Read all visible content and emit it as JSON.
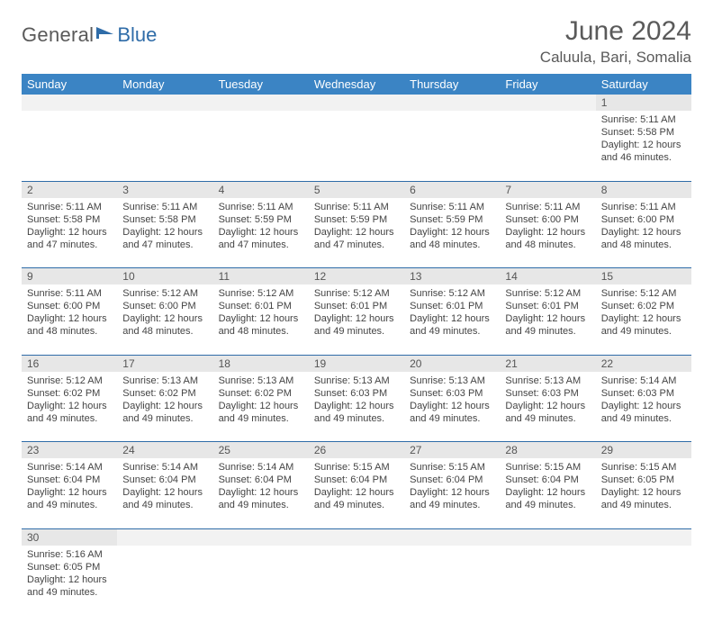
{
  "logo": {
    "part1": "General",
    "part2": "Blue",
    "icon_color": "#2f6ca8"
  },
  "title": "June 2024",
  "location": "Caluula, Bari, Somalia",
  "colors": {
    "header_bg": "#3b84c4",
    "header_fg": "#ffffff",
    "daynum_bg": "#e7e7e7",
    "row_divider": "#2f6ca8",
    "text": "#444444",
    "title_color": "#5a5a5a"
  },
  "weekdays": [
    "Sunday",
    "Monday",
    "Tuesday",
    "Wednesday",
    "Thursday",
    "Friday",
    "Saturday"
  ],
  "weeks": [
    {
      "nums": [
        "",
        "",
        "",
        "",
        "",
        "",
        "1"
      ],
      "cells": [
        null,
        null,
        null,
        null,
        null,
        null,
        {
          "sunrise": "Sunrise: 5:11 AM",
          "sunset": "Sunset: 5:58 PM",
          "day1": "Daylight: 12 hours",
          "day2": "and 46 minutes."
        }
      ]
    },
    {
      "nums": [
        "2",
        "3",
        "4",
        "5",
        "6",
        "7",
        "8"
      ],
      "cells": [
        {
          "sunrise": "Sunrise: 5:11 AM",
          "sunset": "Sunset: 5:58 PM",
          "day1": "Daylight: 12 hours",
          "day2": "and 47 minutes."
        },
        {
          "sunrise": "Sunrise: 5:11 AM",
          "sunset": "Sunset: 5:58 PM",
          "day1": "Daylight: 12 hours",
          "day2": "and 47 minutes."
        },
        {
          "sunrise": "Sunrise: 5:11 AM",
          "sunset": "Sunset: 5:59 PM",
          "day1": "Daylight: 12 hours",
          "day2": "and 47 minutes."
        },
        {
          "sunrise": "Sunrise: 5:11 AM",
          "sunset": "Sunset: 5:59 PM",
          "day1": "Daylight: 12 hours",
          "day2": "and 47 minutes."
        },
        {
          "sunrise": "Sunrise: 5:11 AM",
          "sunset": "Sunset: 5:59 PM",
          "day1": "Daylight: 12 hours",
          "day2": "and 48 minutes."
        },
        {
          "sunrise": "Sunrise: 5:11 AM",
          "sunset": "Sunset: 6:00 PM",
          "day1": "Daylight: 12 hours",
          "day2": "and 48 minutes."
        },
        {
          "sunrise": "Sunrise: 5:11 AM",
          "sunset": "Sunset: 6:00 PM",
          "day1": "Daylight: 12 hours",
          "day2": "and 48 minutes."
        }
      ]
    },
    {
      "nums": [
        "9",
        "10",
        "11",
        "12",
        "13",
        "14",
        "15"
      ],
      "cells": [
        {
          "sunrise": "Sunrise: 5:11 AM",
          "sunset": "Sunset: 6:00 PM",
          "day1": "Daylight: 12 hours",
          "day2": "and 48 minutes."
        },
        {
          "sunrise": "Sunrise: 5:12 AM",
          "sunset": "Sunset: 6:00 PM",
          "day1": "Daylight: 12 hours",
          "day2": "and 48 minutes."
        },
        {
          "sunrise": "Sunrise: 5:12 AM",
          "sunset": "Sunset: 6:01 PM",
          "day1": "Daylight: 12 hours",
          "day2": "and 48 minutes."
        },
        {
          "sunrise": "Sunrise: 5:12 AM",
          "sunset": "Sunset: 6:01 PM",
          "day1": "Daylight: 12 hours",
          "day2": "and 49 minutes."
        },
        {
          "sunrise": "Sunrise: 5:12 AM",
          "sunset": "Sunset: 6:01 PM",
          "day1": "Daylight: 12 hours",
          "day2": "and 49 minutes."
        },
        {
          "sunrise": "Sunrise: 5:12 AM",
          "sunset": "Sunset: 6:01 PM",
          "day1": "Daylight: 12 hours",
          "day2": "and 49 minutes."
        },
        {
          "sunrise": "Sunrise: 5:12 AM",
          "sunset": "Sunset: 6:02 PM",
          "day1": "Daylight: 12 hours",
          "day2": "and 49 minutes."
        }
      ]
    },
    {
      "nums": [
        "16",
        "17",
        "18",
        "19",
        "20",
        "21",
        "22"
      ],
      "cells": [
        {
          "sunrise": "Sunrise: 5:12 AM",
          "sunset": "Sunset: 6:02 PM",
          "day1": "Daylight: 12 hours",
          "day2": "and 49 minutes."
        },
        {
          "sunrise": "Sunrise: 5:13 AM",
          "sunset": "Sunset: 6:02 PM",
          "day1": "Daylight: 12 hours",
          "day2": "and 49 minutes."
        },
        {
          "sunrise": "Sunrise: 5:13 AM",
          "sunset": "Sunset: 6:02 PM",
          "day1": "Daylight: 12 hours",
          "day2": "and 49 minutes."
        },
        {
          "sunrise": "Sunrise: 5:13 AM",
          "sunset": "Sunset: 6:03 PM",
          "day1": "Daylight: 12 hours",
          "day2": "and 49 minutes."
        },
        {
          "sunrise": "Sunrise: 5:13 AM",
          "sunset": "Sunset: 6:03 PM",
          "day1": "Daylight: 12 hours",
          "day2": "and 49 minutes."
        },
        {
          "sunrise": "Sunrise: 5:13 AM",
          "sunset": "Sunset: 6:03 PM",
          "day1": "Daylight: 12 hours",
          "day2": "and 49 minutes."
        },
        {
          "sunrise": "Sunrise: 5:14 AM",
          "sunset": "Sunset: 6:03 PM",
          "day1": "Daylight: 12 hours",
          "day2": "and 49 minutes."
        }
      ]
    },
    {
      "nums": [
        "23",
        "24",
        "25",
        "26",
        "27",
        "28",
        "29"
      ],
      "cells": [
        {
          "sunrise": "Sunrise: 5:14 AM",
          "sunset": "Sunset: 6:04 PM",
          "day1": "Daylight: 12 hours",
          "day2": "and 49 minutes."
        },
        {
          "sunrise": "Sunrise: 5:14 AM",
          "sunset": "Sunset: 6:04 PM",
          "day1": "Daylight: 12 hours",
          "day2": "and 49 minutes."
        },
        {
          "sunrise": "Sunrise: 5:14 AM",
          "sunset": "Sunset: 6:04 PM",
          "day1": "Daylight: 12 hours",
          "day2": "and 49 minutes."
        },
        {
          "sunrise": "Sunrise: 5:15 AM",
          "sunset": "Sunset: 6:04 PM",
          "day1": "Daylight: 12 hours",
          "day2": "and 49 minutes."
        },
        {
          "sunrise": "Sunrise: 5:15 AM",
          "sunset": "Sunset: 6:04 PM",
          "day1": "Daylight: 12 hours",
          "day2": "and 49 minutes."
        },
        {
          "sunrise": "Sunrise: 5:15 AM",
          "sunset": "Sunset: 6:04 PM",
          "day1": "Daylight: 12 hours",
          "day2": "and 49 minutes."
        },
        {
          "sunrise": "Sunrise: 5:15 AM",
          "sunset": "Sunset: 6:05 PM",
          "day1": "Daylight: 12 hours",
          "day2": "and 49 minutes."
        }
      ]
    },
    {
      "nums": [
        "30",
        "",
        "",
        "",
        "",
        "",
        ""
      ],
      "cells": [
        {
          "sunrise": "Sunrise: 5:16 AM",
          "sunset": "Sunset: 6:05 PM",
          "day1": "Daylight: 12 hours",
          "day2": "and 49 minutes."
        },
        null,
        null,
        null,
        null,
        null,
        null
      ]
    }
  ]
}
